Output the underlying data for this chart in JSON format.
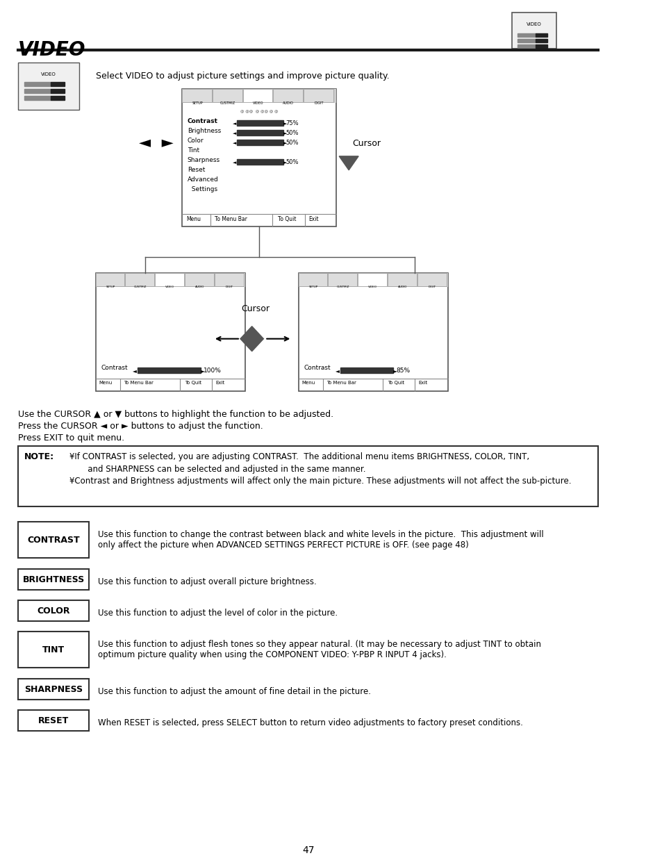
{
  "title": "VIDEO",
  "page_number": "47",
  "bg_color": "#ffffff",
  "text_color": "#000000",
  "intro_text": "Select VIDEO to adjust picture settings and improve picture quality.",
  "cursor_instructions": [
    "Use the CURSOR ▲ or ▼ buttons to highlight the function to be adjusted.",
    "Press the CURSOR ◄ or ► buttons to adjust the function.",
    "Press EXIT to quit menu."
  ],
  "note_title": "NOTE:",
  "note_lines": [
    "¥If CONTRAST is selected, you are adjusting CONTRAST.  The additional menu items BRIGHTNESS, COLOR, TINT,",
    "       and SHARPNESS can be selected and adjusted in the same manner.",
    "¥Contrast and Brightness adjustments will affect only the main picture. These adjustments will not affect the sub-picture."
  ],
  "definitions": [
    {
      "term": "CONTRAST",
      "desc": "Use this function to change the contrast between black and white levels in the picture.  This adjustment will\nonly affect the picture when ADVANCED SETTINGS PERFECT PICTURE is OFF. (see page 48)"
    },
    {
      "term": "BRIGHTNESS",
      "desc": "Use this function to adjust overall picture brightness."
    },
    {
      "term": "COLOR",
      "desc": "Use this function to adjust the level of color in the picture."
    },
    {
      "term": "TINT",
      "desc": "Use this function to adjust flesh tones so they appear natural. (It may be necessary to adjust TINT to obtain\noptimum picture quality when using the COMPONENT VIDEO: Y-PBP R INPUT 4 jacks)."
    },
    {
      "term": "SHARPNESS",
      "desc": "Use this function to adjust the amount of fine detail in the picture."
    },
    {
      "term": "RESET",
      "desc": "When RESET is selected, press SELECT button to return video adjustments to factory preset conditions."
    }
  ]
}
